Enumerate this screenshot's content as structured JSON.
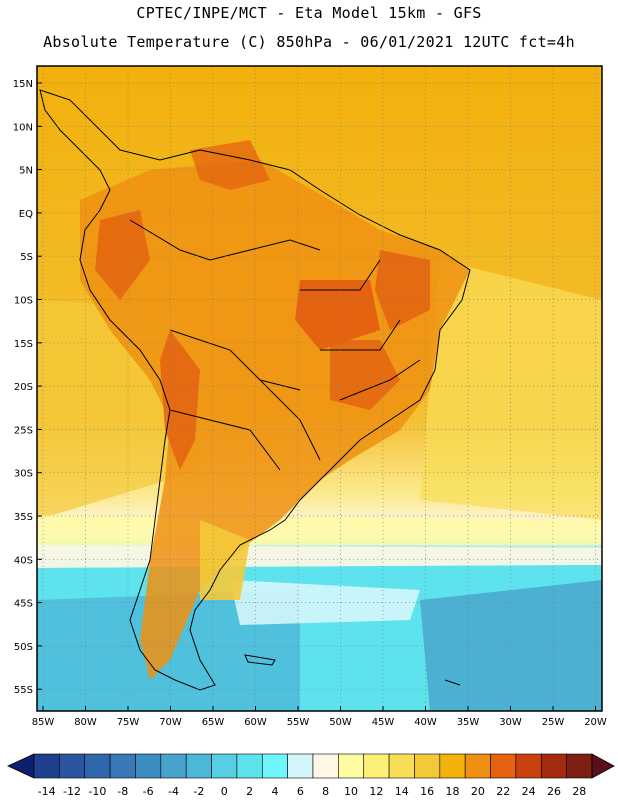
{
  "header": {
    "line1": "CPTEC/INPE/MCT -  Eta Model 15km - GFS",
    "line2": "Absolute Temperature (C) 850hPa - 06/01/2021 12UTC fct=4h"
  },
  "map": {
    "latitude_labels": [
      "15N",
      "10N",
      "5N",
      "EQ",
      "5S",
      "10S",
      "15S",
      "20S",
      "25S",
      "30S",
      "35S",
      "40S",
      "45S",
      "50S",
      "55S"
    ],
    "longitude_labels": [
      "85W",
      "80W",
      "75W",
      "70W",
      "65W",
      "60W",
      "55W",
      "50W",
      "45W",
      "40W",
      "35W",
      "30W",
      "25W",
      "20W"
    ],
    "grid": "dotted"
  },
  "colorbar": {
    "tick_labels": [
      "-14",
      "-12",
      "-10",
      "-8",
      "-6",
      "-4",
      "-2",
      "0",
      "2",
      "4",
      "6",
      "8",
      "10",
      "12",
      "14",
      "16",
      "18",
      "20",
      "22",
      "24",
      "26",
      "28"
    ],
    "colors": [
      "#1f3f8f",
      "#2b55a0",
      "#3066ac",
      "#3a78b6",
      "#3d8cc2",
      "#47a2cc",
      "#4cb8d8",
      "#56cfe4",
      "#5ee3ee",
      "#6ff6fb",
      "#d4f6fb",
      "#fff7e4",
      "#fffba0",
      "#fbef77",
      "#f8de57",
      "#f4c939",
      "#f2b10c",
      "#ef9012",
      "#e46210",
      "#c9420e",
      "#a42a10",
      "#7d1f12"
    ],
    "under_color": "#0d1f6e",
    "over_color": "#5a0f1a"
  }
}
